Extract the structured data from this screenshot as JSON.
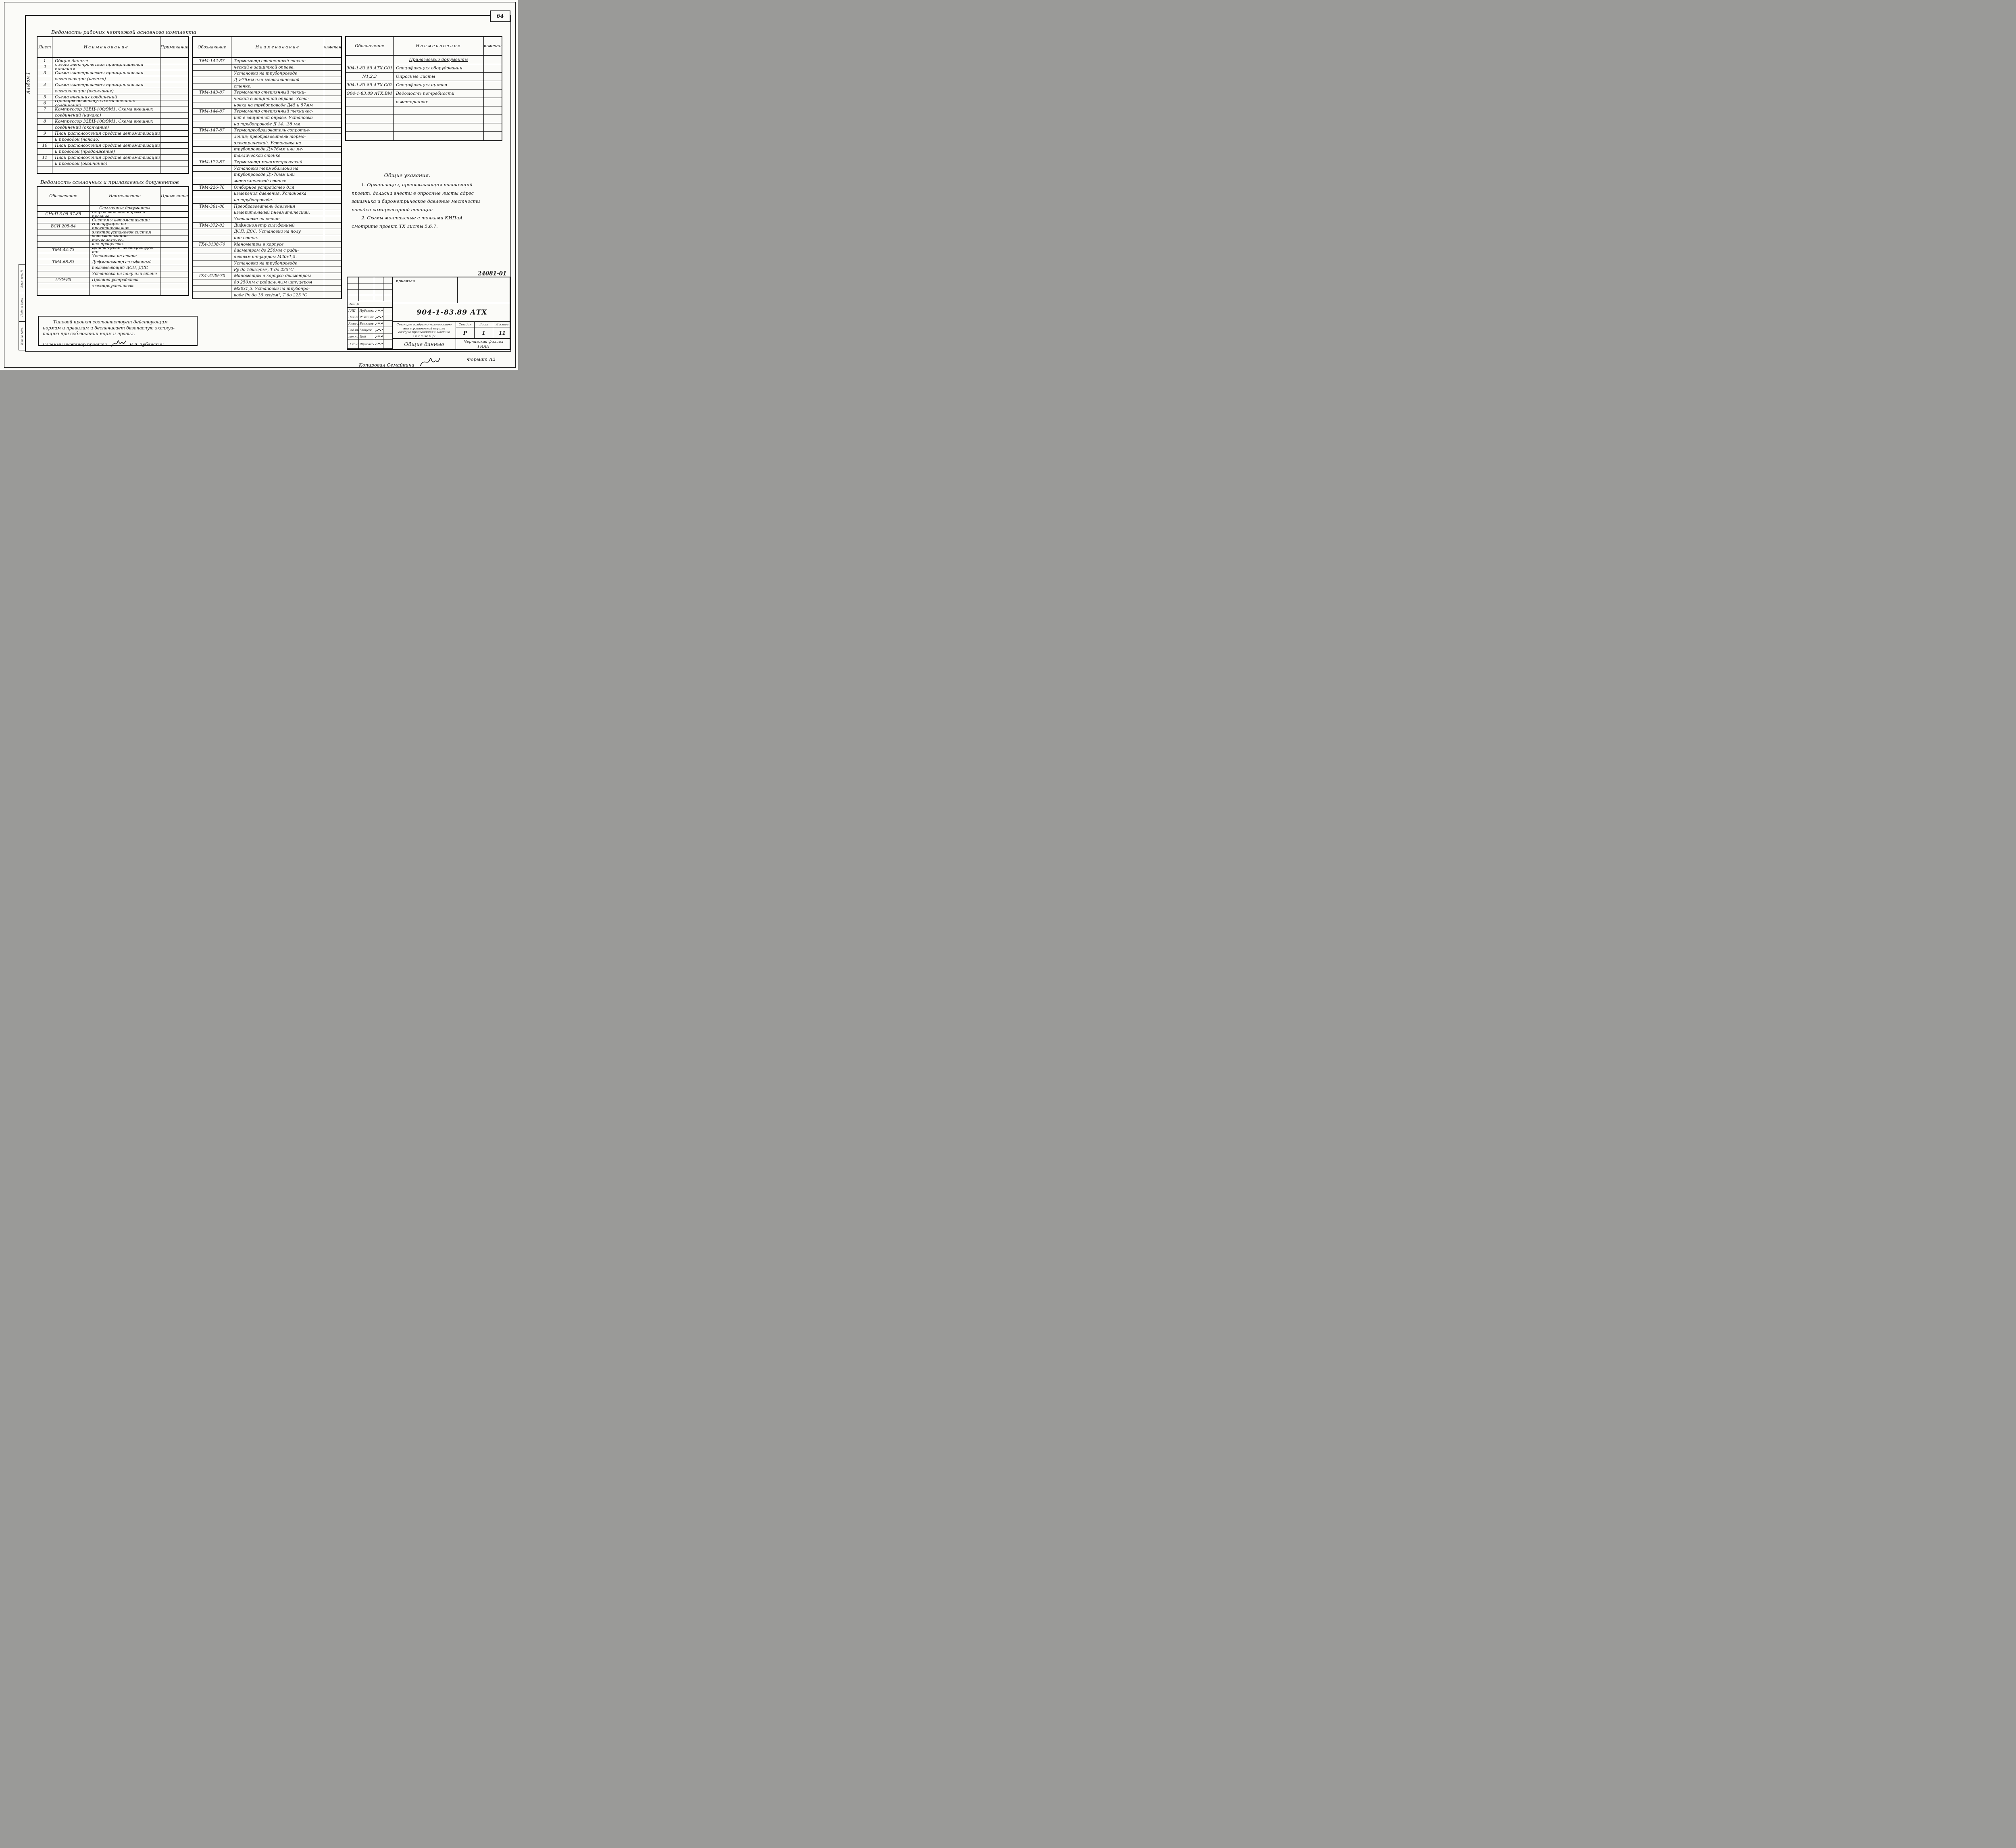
{
  "page": {
    "sheet_number": "64",
    "album_label": "Альбом 1",
    "doc_stamp_number": "24081-01",
    "copied_label": "Копировал Семайкина",
    "format_label": "Формат А2",
    "margin_labels": [
      "Взам. инв. №",
      "Подп. и дата",
      "Инв. № подл."
    ]
  },
  "working_drawings": {
    "title": "Ведомость рабочих чертежей основного комплекта",
    "headers": [
      "Лист",
      "Наименование",
      "Примечание"
    ],
    "rows": [
      {
        "num": "1",
        "lines": [
          "Общие данные"
        ]
      },
      {
        "num": "2",
        "lines": [
          "Схема электрическая принципиальная питания"
        ]
      },
      {
        "num": "3",
        "lines": [
          "Схема электрическая принципиальная",
          "сигнализации (начало)"
        ]
      },
      {
        "num": "4",
        "lines": [
          "Схема электрическая принципиальная",
          "сигнализации (окончание)"
        ]
      },
      {
        "num": "5",
        "lines": [
          "Схема внешних соединений"
        ]
      },
      {
        "num": "6",
        "lines": [
          "Приборы по месту. Схема внешних соединений"
        ]
      },
      {
        "num": "7",
        "lines": [
          "Компрессор 32ВЦ-100/9М1. Схема внешних",
          "соединений (начало)"
        ]
      },
      {
        "num": "8",
        "lines": [
          "Компрессор 32ВЦ-100/9М1. Схема внешних",
          "соединений (окончание)"
        ]
      },
      {
        "num": "9",
        "lines": [
          "План расположения средств автоматизации",
          "и проводок (начало)"
        ]
      },
      {
        "num": "10",
        "lines": [
          "План расположения средств автоматизации",
          "и проводок (продолжение)"
        ]
      },
      {
        "num": "11",
        "lines": [
          "План расположения средств автоматизации",
          "и проводок (окончание)"
        ]
      },
      {
        "num": "",
        "lines": [
          ""
        ]
      }
    ]
  },
  "reference_docs": {
    "title": "Ведомость ссылочных и прилагаемых документов",
    "headers": [
      "Обозначение",
      "Наименование",
      "Примечание"
    ],
    "rows": [
      {
        "code": "",
        "section": true,
        "lines": [
          "Ссылочные документы"
        ]
      },
      {
        "code": "СНиП 3.05.07-85",
        "lines": [
          "Строительные нормы и правила",
          "Системы автоматизации"
        ]
      },
      {
        "code": "ВСН 205-84",
        "lines": [
          "Инструкция по проектированию",
          "электроустановок систем",
          "автоматизации технологичес-",
          "ких процессов."
        ]
      },
      {
        "code": "ТМ4-44-73",
        "lines": [
          "Датчик реле температуры тр.",
          "Установка на стене"
        ]
      },
      {
        "code": "ТМ4-68-83",
        "lines": [
          "Дифманометр сильфонный",
          "показывающий ДСП, ДСС",
          "Установка на полу или стене"
        ]
      },
      {
        "code": "ПУЭ-85",
        "lines": [
          "Правила устройства",
          "электроустановок"
        ]
      },
      {
        "code": "",
        "lines": [
          ""
        ]
      }
    ]
  },
  "installation_typicals": {
    "headers": [
      "Обозначение",
      "Наименование",
      "Примечание"
    ],
    "rows": [
      {
        "code": "ТМ4-142-87",
        "lines": [
          "Термометр стеклянный техни-",
          "ческий в защитной оправе.",
          "Установка на трубопроводе",
          "Д >76мм или металлической",
          "стенке."
        ]
      },
      {
        "code": "ТМ4-143-87",
        "lines": [
          "Термометр стеклянный техни-",
          "ческий в защитной оправе. Уста-",
          "новка на трубопроводе Д45 и 57мм"
        ]
      },
      {
        "code": "ТМ4-144-87",
        "lines": [
          "Термометр стеклянный техничес-",
          "кий в защитной оправе. Установка",
          "на трубопроводе Д 14...38 мм."
        ]
      },
      {
        "code": "ТМ4-147-87",
        "lines": [
          "Термопреобразователь сопротив-",
          "ления; преобразователь термо-",
          "электрический. Установка на",
          "трубопроводе Д>76мм или ме-",
          "таллической стенке"
        ]
      },
      {
        "code": "ТМ4-172-87",
        "lines": [
          "Термометр манометрический.",
          "Установка термобаллона на",
          "трубопроводе Д>76мм или",
          "металлической стенке."
        ]
      },
      {
        "code": "ТМ4-226-76",
        "lines": [
          "Отборное устройство для",
          "измерения давления. Установка",
          "на трубопроводе."
        ]
      },
      {
        "code": "ТМ4-361-86",
        "lines": [
          "Преобразователь давления",
          "измерительный пневматический.",
          "Установка на стене."
        ]
      },
      {
        "code": "ТМ4-372-83",
        "lines": [
          "Дифманометр сильфонный",
          "ДСП, ДСС. Установка на полу",
          "или стене."
        ]
      },
      {
        "code": "ТХ4-3138-70",
        "lines": [
          "Манометры в корпусе",
          "диаметром до 250мм с ради-",
          "альным штуцером М20х1,5.",
          "Установка на трубопроводе",
          "Ру до 16кгс/см², Т до 225°С"
        ]
      },
      {
        "code": "ТХ4-3139-70",
        "lines": [
          "Манометры в корпусе диаметром",
          "до 250мм с радиальным штуцером",
          "М20х1,5. Установка на трубопро-",
          "воде Ру до 16 кгс/см², Т до 225 °С"
        ]
      }
    ]
  },
  "attached_docs": {
    "headers": [
      "Обозначение",
      "Наименование",
      "Примечание"
    ],
    "rows": [
      {
        "code": "",
        "section": true,
        "lines": [
          "Прилагаемые документы"
        ]
      },
      {
        "code": "904-1-83.89 АТХ.С01",
        "lines": [
          "Спецификация оборудования"
        ]
      },
      {
        "code": "N1,2,3",
        "lines": [
          "Опросные листы"
        ]
      },
      {
        "code": "904-1-83.89 АТХ.С02",
        "lines": [
          "Спецификация щитов"
        ]
      },
      {
        "code": "904-1-83.89 АТХ.ВМ",
        "lines": [
          "Ведомость потребности",
          "в материалах"
        ]
      },
      {
        "code": "",
        "lines": [
          "",
          "",
          "",
          ""
        ]
      }
    ]
  },
  "general_notes": {
    "title": "Общие указания.",
    "lines": [
      "1. Организация, привязывающая настоящий",
      "проект, должна внести в опросные листы адрес",
      "заказчика и барометрическое давление местности",
      "посадки компрессорной станции",
      "2. Схемы монтажные с точками КИПиА",
      "смотрите проект ТХ листы 5,6,7."
    ]
  },
  "approval_note": {
    "lines": [
      "Типовой проект соответствует действующим",
      "нормам и правилам и беспечивает безопасную эксплуа-",
      "тацию при соблюдении норм и правил."
    ],
    "signoff_label": "Главный инженер проекта",
    "signoff_name": "Б.А.Лубенский"
  },
  "title_block": {
    "binding_label": "привязан",
    "inventory_label": "Инв. №",
    "doc_code": "904-1-83.89 АТХ",
    "signatures": [
      {
        "role": "ГИП",
        "name": "Лубенский"
      },
      {
        "role": "Нач.отд",
        "name": "Романюк"
      },
      {
        "role": "Р.спец",
        "name": "Белятов"
      },
      {
        "role": "Вед.инж",
        "name": "Зайцева"
      },
      {
        "role": "техник",
        "name": "Цой"
      }
    ],
    "checker": {
      "role": "Н.контр",
      "name": "Шуковсов"
    },
    "project_title_lines": [
      "Станция воздушно-компрессион-",
      "ная с установкой осушки",
      "воздуха производительностью",
      "14,2 тыс.м³/ч"
    ],
    "stage_header": "Стадия",
    "sheet_header": "Лист",
    "sheets_header": "Листов",
    "stage": "Р",
    "sheet": "1",
    "sheets": "11",
    "sheet_title": "Общие данные",
    "organization_lines": [
      "Чернигский филиал",
      "ГИАП"
    ]
  }
}
